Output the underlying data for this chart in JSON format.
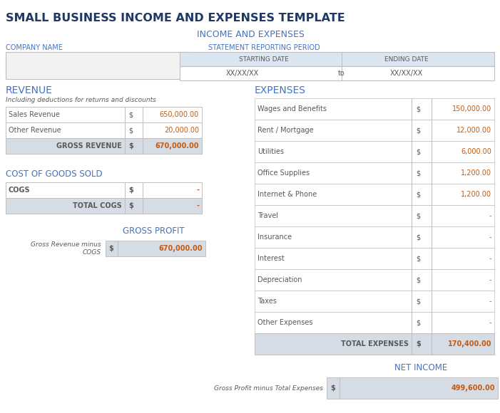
{
  "main_title": "SMALL BUSINESS INCOME AND EXPENSES TEMPLATE",
  "sub_title": "INCOME AND EXPENSES",
  "bg_color": "#ffffff",
  "title_color": "#1f3864",
  "subtitle_color": "#4472c4",
  "section_color": "#4472c4",
  "text_color": "#595959",
  "border_color": "#bfbfbf",
  "header_bg": "#dce6f1",
  "total_bg": "#d6dce4",
  "value_color": "#c55a11",
  "company_label": "COMPANY NAME",
  "statement_label": "STATEMENT REPORTING PERIOD",
  "start_label": "STARTING DATE",
  "end_label": "ENDING DATE",
  "date_val": "XX/XX/XX",
  "date_to": "to",
  "revenue_label": "REVENUE",
  "revenue_sub": "Including deductions for returns and discounts",
  "rev_rows": [
    [
      "Sales Revenue",
      "$",
      "650,000.00"
    ],
    [
      "Other Revenue",
      "$",
      "20,000.00"
    ]
  ],
  "gross_rev_row": [
    "GROSS REVENUE",
    "$",
    "670,000.00"
  ],
  "cogs_label": "COST OF GOODS SOLD",
  "cogs_rows": [
    [
      "COGS",
      "$",
      "-"
    ]
  ],
  "total_cogs_row": [
    "TOTAL COGS",
    "$",
    "-"
  ],
  "gp_label": "GROSS PROFIT",
  "gp_desc": "Gross Revenue minus\nCOGS",
  "gp_row": [
    "$",
    "670,000.00"
  ],
  "expenses_label": "EXPENSES",
  "exp_rows": [
    [
      "Wages and Benefits",
      "$",
      "150,000.00"
    ],
    [
      "Rent / Mortgage",
      "$",
      "12,000.00"
    ],
    [
      "Utilities",
      "$",
      "6,000.00"
    ],
    [
      "Office Supplies",
      "$",
      "1,200.00"
    ],
    [
      "Internet & Phone",
      "$",
      "1,200.00"
    ],
    [
      "Travel",
      "$",
      "-"
    ],
    [
      "Insurance",
      "$",
      "-"
    ],
    [
      "Interest",
      "$",
      "-"
    ],
    [
      "Depreciation",
      "$",
      "-"
    ],
    [
      "Taxes",
      "$",
      "-"
    ],
    [
      "Other Expenses",
      "$",
      "-"
    ]
  ],
  "total_exp_row": [
    "TOTAL EXPENSES",
    "$",
    "170,400.00"
  ],
  "net_income_label": "NET INCOME",
  "net_income_desc": "Gross Profit minus Total Expenses",
  "net_income_row": [
    "$",
    "499,600.00"
  ]
}
